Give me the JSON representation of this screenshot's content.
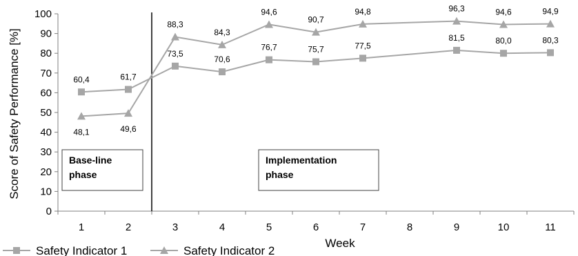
{
  "chart_data": {
    "type": "line",
    "xlabel": "Week",
    "ylabel": "Score of Safety Performance [%]",
    "ylim": [
      0,
      100
    ],
    "yticks": [
      0,
      10,
      20,
      30,
      40,
      50,
      60,
      70,
      80,
      90,
      100
    ],
    "categories": [
      "1",
      "2",
      "3",
      "4",
      "5",
      "6",
      "7",
      "8",
      "9",
      "10",
      "11"
    ],
    "grid": false,
    "legend": "bottom-left",
    "series": [
      {
        "name": "Safety Indicator 1",
        "marker": "square",
        "color": "#a6a6a6",
        "values": [
          60.4,
          61.7,
          73.5,
          70.6,
          76.7,
          75.7,
          77.5,
          null,
          81.5,
          80.0,
          80.3
        ],
        "labels": [
          "60,4",
          "61,7",
          "73,5",
          "70,6",
          "76,7",
          "75,7",
          "77,5",
          null,
          "81,5",
          "80,0",
          "80,3"
        ]
      },
      {
        "name": "Safety Indicator 2",
        "marker": "triangle",
        "color": "#a6a6a6",
        "values": [
          48.1,
          49.6,
          88.3,
          84.3,
          94.6,
          90.7,
          94.8,
          null,
          96.3,
          94.6,
          94.9
        ],
        "labels": [
          "48,1",
          "49,6",
          "88,3",
          "84,3",
          "94,6",
          "90,7",
          "94,8",
          null,
          "96,3",
          "94,6",
          "94,9"
        ]
      }
    ],
    "phase_divider_after": "2",
    "phases": [
      {
        "label_line1": "Base-line",
        "label_line2": "phase",
        "start": "1",
        "end": "2"
      },
      {
        "label_line1": "Implementation",
        "label_line2": "phase",
        "start": "6",
        "end": "7"
      }
    ]
  }
}
